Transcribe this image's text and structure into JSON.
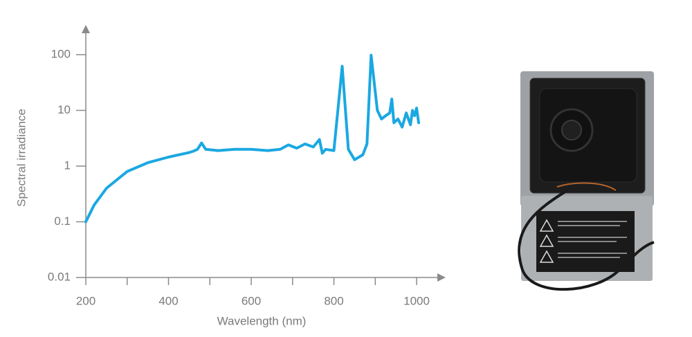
{
  "chart_data": {
    "type": "line",
    "x_label": "Wavelength (nm)",
    "y_label": "Spectral irradiance",
    "log_y": true,
    "color": "#1aa8e2",
    "xlim": [
      200,
      1060
    ],
    "ylim": [
      0.01,
      300
    ],
    "xticks": [
      200,
      400,
      600,
      800,
      1000
    ],
    "xminor_ticks": [
      300,
      500,
      700,
      900
    ],
    "yticks": [
      0.01,
      0.1,
      1,
      10,
      100
    ],
    "x": [
      200,
      220,
      250,
      300,
      350,
      400,
      450,
      460,
      470,
      480,
      490,
      520,
      560,
      600,
      640,
      670,
      690,
      710,
      730,
      750,
      765,
      772,
      780,
      800,
      820,
      835,
      850,
      870,
      880,
      890,
      905,
      915,
      925,
      935,
      940,
      945,
      955,
      965,
      975,
      985,
      990,
      995,
      1000,
      1005
    ],
    "values": [
      0.1,
      0.2,
      0.4,
      0.8,
      1.15,
      1.45,
      1.75,
      1.85,
      2.0,
      2.6,
      2.0,
      1.9,
      2.0,
      2.0,
      1.9,
      2.0,
      2.4,
      2.1,
      2.5,
      2.2,
      3.0,
      1.7,
      2.0,
      1.9,
      62,
      2.0,
      1.3,
      1.6,
      2.5,
      98,
      10,
      7,
      8,
      9,
      16,
      6,
      7,
      5,
      9,
      5.5,
      10,
      8,
      11,
      6
    ]
  }
}
